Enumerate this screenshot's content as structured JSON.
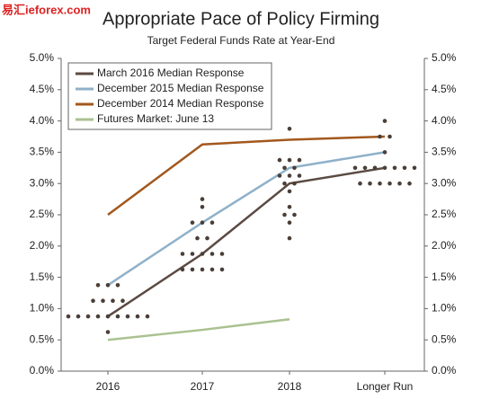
{
  "chart_data": {
    "type": "dot-plot",
    "watermark": "易汇ieforex.com",
    "title": "Appropriate Pace of Policy Firming",
    "subtitle": "Target Federal Funds Rate at Year-End",
    "categories": [
      "2016",
      "2017",
      "2018",
      "Longer Run"
    ],
    "ylim": [
      0,
      5
    ],
    "yticks": [
      {
        "value": 0,
        "label": "0.0%"
      },
      {
        "value": 0.5,
        "label": "0.5%"
      },
      {
        "value": 1,
        "label": "1.0%"
      },
      {
        "value": 1.5,
        "label": "1.5%"
      },
      {
        "value": 2,
        "label": "2.0%"
      },
      {
        "value": 2.5,
        "label": "2.5%"
      },
      {
        "value": 3,
        "label": "3.0%"
      },
      {
        "value": 3.5,
        "label": "3.5%"
      },
      {
        "value": 4,
        "label": "4.0%"
      },
      {
        "value": 4.5,
        "label": "4.5%"
      },
      {
        "value": 5,
        "label": "5.0%"
      }
    ],
    "series": [
      {
        "name": "March 2016 Median Response",
        "color": "#5b4a42",
        "values": [
          0.875,
          1.875,
          3.0,
          3.25
        ]
      },
      {
        "name": "December 2015 Median Response",
        "color": "#8fb1c9",
        "values": [
          1.375,
          2.375,
          3.25,
          3.5
        ]
      },
      {
        "name": "December 2014 Median Response",
        "color": "#a3581d",
        "values": [
          2.5,
          3.625,
          3.7,
          3.75
        ]
      },
      {
        "name": "Futures Market: June 13",
        "color": "#aac190",
        "values": [
          0.5,
          0.66,
          0.83,
          null
        ]
      }
    ],
    "dot_color": "#4a3f38",
    "dots": [
      [
        1.375,
        1.375,
        1.375,
        1.125,
        1.125,
        1.125,
        1.125,
        0.875,
        0.875,
        0.875,
        0.875,
        0.875,
        0.875,
        0.875,
        0.875,
        0.875,
        0.625
      ],
      [
        2.75,
        2.625,
        2.375,
        2.375,
        2.375,
        2.125,
        2.125,
        1.875,
        1.875,
        1.875,
        1.875,
        1.875,
        1.625,
        1.625,
        1.625,
        1.625,
        1.625
      ],
      [
        3.875,
        3.375,
        3.375,
        3.375,
        3.25,
        3.25,
        3.125,
        3.125,
        3.125,
        3.0,
        3.0,
        2.875,
        2.625,
        2.5,
        2.5,
        2.375,
        2.125
      ],
      [
        4.0,
        3.75,
        3.75,
        3.5,
        3.25,
        3.25,
        3.25,
        3.25,
        3.25,
        3.25,
        3.25,
        3.0,
        3.0,
        3.0,
        3.0,
        3.0,
        3.0
      ]
    ]
  }
}
